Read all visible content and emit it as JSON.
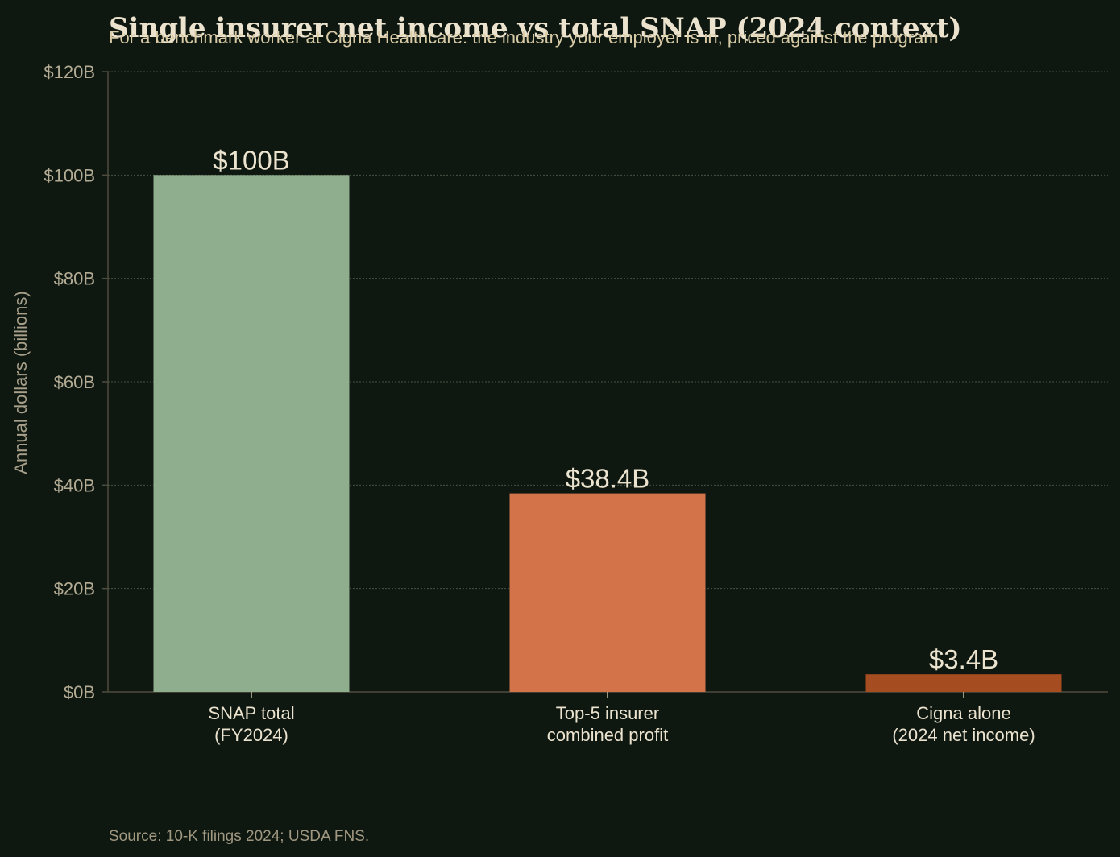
{
  "chart_data": {
    "type": "bar",
    "title": "Single insurer net income vs total SNAP (2024 context)",
    "subtitle": "For a benchmark worker at Cigna Healthcare: the industry your employer is in, priced against the program",
    "ylabel": "Annual dollars (billions)",
    "xlabel": "",
    "ylim": [
      0,
      120
    ],
    "yticks": [
      0,
      20,
      40,
      60,
      80,
      100,
      120
    ],
    "ytick_labels": [
      "$0B",
      "$20B",
      "$40B",
      "$60B",
      "$80B",
      "$100B",
      "$120B"
    ],
    "grid": true,
    "categories": [
      [
        "SNAP total",
        "(FY2024)"
      ],
      [
        "Top-5 insurer",
        "combined profit"
      ],
      [
        "Cigna alone",
        "(2024 net income)"
      ]
    ],
    "values": [
      100,
      38.4,
      3.4
    ],
    "value_labels": [
      "$100B",
      "$38.4B",
      "$3.4B"
    ],
    "colors": [
      "#8fae8e",
      "#d3734a",
      "#a54c20"
    ],
    "source": "Source: 10-K filings 2024; USDA FNS."
  },
  "theme": {
    "background": "#0e1811",
    "grid_color": "#4a5244",
    "axis_color": "#4f4c3d"
  }
}
